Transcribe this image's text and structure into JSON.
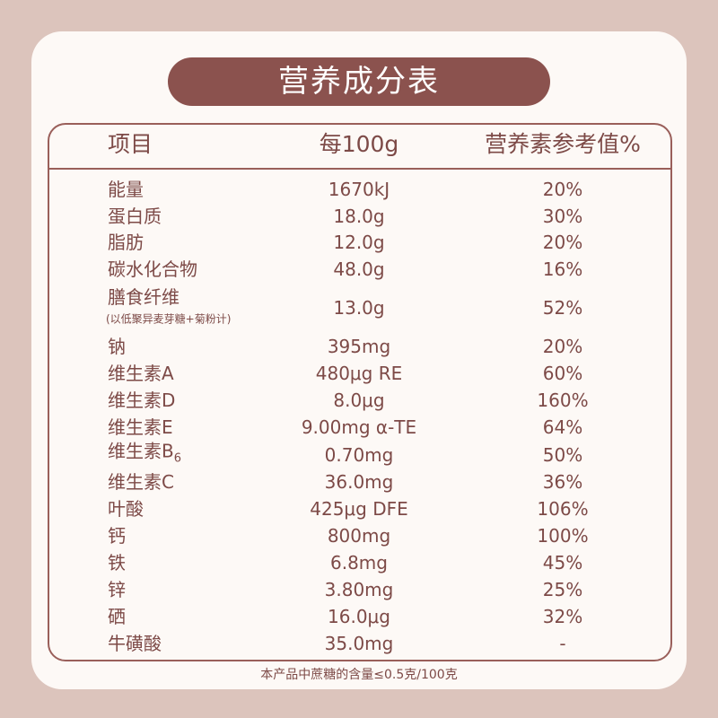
{
  "title": "营养成分表",
  "headers": [
    "项目",
    "每100g",
    "营养素参考值%"
  ],
  "rows": [
    {
      "name": "能量",
      "value": "1670kJ",
      "nrv": "20%"
    },
    {
      "name": "蛋白质",
      "value": "18.0g",
      "nrv": "30%"
    },
    {
      "name": "脂肪",
      "value": "12.0g",
      "nrv": "20%"
    },
    {
      "name": "碳水化合物",
      "value": "48.0g",
      "nrv": "16%"
    },
    {
      "name": "膳食纤维",
      "note": "(以低聚异麦芽糖+菊粉计)",
      "value": "13.0g",
      "nrv": "52%"
    },
    {
      "name": "钠",
      "value": "395mg",
      "nrv": "20%"
    },
    {
      "name": "维生素A",
      "value": "480μg RE",
      "nrv": "60%"
    },
    {
      "name": "维生素D",
      "value": "8.0μg",
      "nrv": "160%"
    },
    {
      "name": "维生素E",
      "value": "9.00mg α-TE",
      "nrv": "64%"
    },
    {
      "name": "维生素B",
      "subscript": "6",
      "value": "0.70mg",
      "nrv": "50%"
    },
    {
      "name": "维生素C",
      "value": "36.0mg",
      "nrv": "36%"
    },
    {
      "name": "叶酸",
      "value": "425μg DFE",
      "nrv": "106%"
    },
    {
      "name": "钙",
      "value": "800mg",
      "nrv": "100%"
    },
    {
      "name": "铁",
      "value": "6.8mg",
      "nrv": "45%"
    },
    {
      "name": "锌",
      "value": "3.80mg",
      "nrv": "25%"
    },
    {
      "name": "硒",
      "value": "16.0μg",
      "nrv": "32%"
    },
    {
      "name": "牛磺酸",
      "value": "35.0mg",
      "nrv": "-"
    }
  ],
  "footnote": "本产品中蔗糖的含量≤0.5克/100克"
}
